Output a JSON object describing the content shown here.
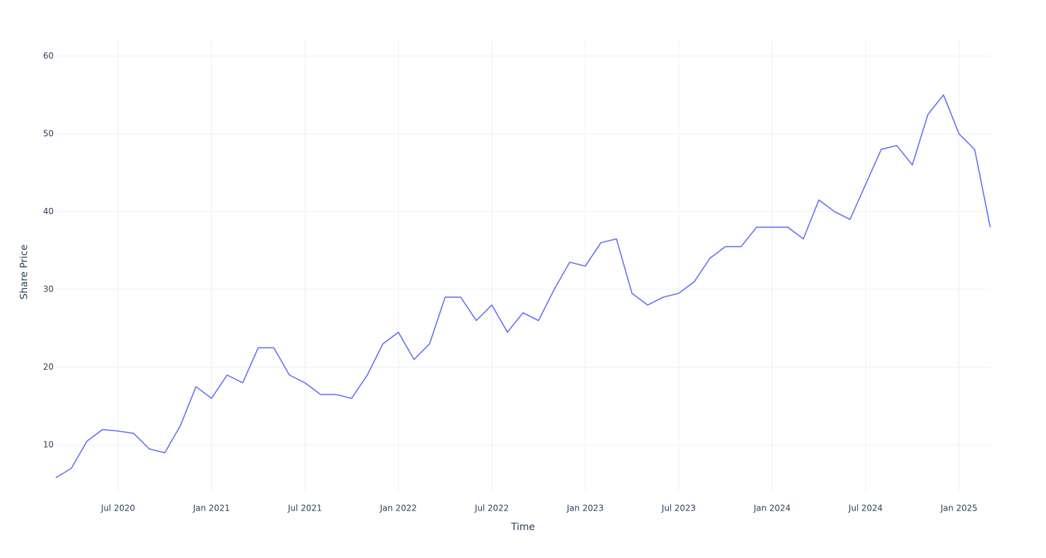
{
  "chart_data": {
    "type": "line",
    "x_label": "Time",
    "y_label": "Share Price",
    "x": [
      "2020-03",
      "2020-04",
      "2020-05",
      "2020-06",
      "2020-07",
      "2020-08",
      "2020-09",
      "2020-10",
      "2020-11",
      "2020-12",
      "2021-01",
      "2021-02",
      "2021-03",
      "2021-04",
      "2021-05",
      "2021-06",
      "2021-07",
      "2021-08",
      "2021-09",
      "2021-10",
      "2021-11",
      "2021-12",
      "2022-01",
      "2022-02",
      "2022-03",
      "2022-04",
      "2022-05",
      "2022-06",
      "2022-07",
      "2022-08",
      "2022-09",
      "2022-10",
      "2022-11",
      "2022-12",
      "2023-01",
      "2023-02",
      "2023-03",
      "2023-04",
      "2023-05",
      "2023-06",
      "2023-07",
      "2023-08",
      "2023-09",
      "2023-10",
      "2023-11",
      "2023-12",
      "2024-01",
      "2024-02",
      "2024-03",
      "2024-04",
      "2024-05",
      "2024-06",
      "2024-07",
      "2024-08",
      "2024-09",
      "2024-10",
      "2024-11",
      "2024-12",
      "2025-01",
      "2025-02",
      "2025-03"
    ],
    "values": [
      5.8,
      7,
      10.5,
      12,
      11.8,
      11.5,
      9.5,
      9,
      12.5,
      17.5,
      16,
      19,
      18,
      22.5,
      22.5,
      19,
      18,
      16.5,
      16.5,
      16,
      19,
      23,
      24.5,
      21,
      23,
      29,
      29,
      26,
      28,
      24.5,
      27,
      26,
      30,
      33.5,
      33,
      36,
      36.5,
      29.5,
      28,
      29,
      29.5,
      31,
      34,
      35.5,
      35.5,
      38,
      38,
      38,
      36.5,
      41.5,
      40,
      39,
      43.5,
      48,
      48.5,
      46,
      52.5,
      55,
      50,
      48,
      38
    ],
    "color": "#636efa",
    "xlim": [
      "2020-03",
      "2025-03"
    ],
    "xticks": [
      {
        "value": "2020-07",
        "label": "Jul 2020"
      },
      {
        "value": "2021-01",
        "label": "Jan 2021"
      },
      {
        "value": "2021-07",
        "label": "Jul 2021"
      },
      {
        "value": "2022-01",
        "label": "Jan 2022"
      },
      {
        "value": "2022-07",
        "label": "Jul 2022"
      },
      {
        "value": "2023-01",
        "label": "Jan 2023"
      },
      {
        "value": "2023-07",
        "label": "Jul 2023"
      },
      {
        "value": "2024-01",
        "label": "Jan 2024"
      },
      {
        "value": "2024-07",
        "label": "Jul 2024"
      },
      {
        "value": "2025-01",
        "label": "Jan 2025"
      }
    ],
    "ylim": [
      4,
      62
    ],
    "yticks": [
      10,
      20,
      30,
      40,
      50,
      60
    ],
    "grid": true
  }
}
